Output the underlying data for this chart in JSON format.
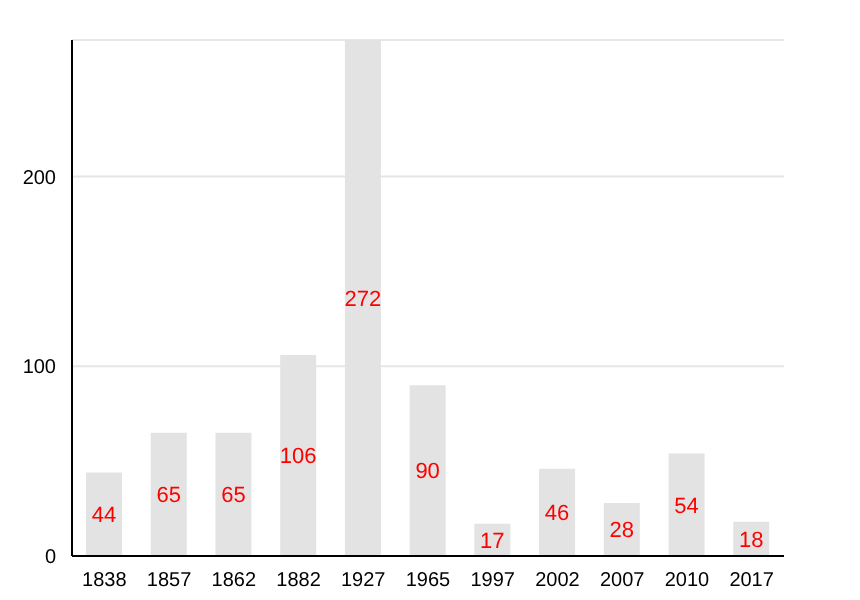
{
  "chart_data": {
    "type": "bar",
    "categories": [
      "1838",
      "1857",
      "1862",
      "1882",
      "1927",
      "1965",
      "1997",
      "2002",
      "2007",
      "2010",
      "2017"
    ],
    "values": [
      44,
      65,
      65,
      106,
      272,
      90,
      17,
      46,
      28,
      54,
      18
    ],
    "color": "#e3e3e3",
    "ylim": [
      0,
      272
    ],
    "yticks": [
      0,
      100,
      200
    ],
    "grid": "y",
    "data_labels": true
  }
}
